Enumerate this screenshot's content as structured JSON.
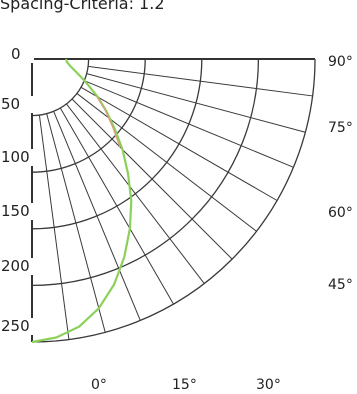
{
  "title": "Spacing-Criteria: 1.2",
  "chart_data": {
    "type": "line",
    "plot": "polar-quarter",
    "radial_axis": {
      "ticks": [
        0,
        50,
        100,
        150,
        200,
        250
      ],
      "range": [
        0,
        250
      ],
      "grid": true
    },
    "angular_axis": {
      "range_deg": [
        0,
        90
      ],
      "grid_step_deg": 7.5,
      "bottom_labels": [
        "0°",
        "15°",
        "30°"
      ],
      "side_labels": [
        "90°",
        "75°",
        "60°",
        "45°"
      ]
    },
    "series": [
      {
        "color": "#8cd05a",
        "points": [
          {
            "angle": 0,
            "r": 250
          },
          {
            "angle": 5,
            "r": 247
          },
          {
            "angle": 10,
            "r": 240
          },
          {
            "angle": 15,
            "r": 228
          },
          {
            "angle": 20,
            "r": 212
          },
          {
            "angle": 25,
            "r": 193
          },
          {
            "angle": 30,
            "r": 173
          },
          {
            "angle": 35,
            "r": 153
          },
          {
            "angle": 40,
            "r": 132
          },
          {
            "angle": 45,
            "r": 113
          },
          {
            "angle": 50,
            "r": 95
          },
          {
            "angle": 55,
            "r": 80
          },
          {
            "angle": 60,
            "r": 67
          },
          {
            "angle": 65,
            "r": 55
          },
          {
            "angle": 70,
            "r": 46
          },
          {
            "angle": 75,
            "r": 39
          },
          {
            "angle": 80,
            "r": 34
          },
          {
            "angle": 85,
            "r": 31
          },
          {
            "angle": 90,
            "r": 30
          }
        ]
      },
      {
        "color": "#d9a07a",
        "points": [
          {
            "angle": 45,
            "r": 110
          },
          {
            "angle": 50,
            "r": 93
          },
          {
            "angle": 55,
            "r": 79
          },
          {
            "angle": 60,
            "r": 66
          }
        ]
      }
    ]
  }
}
